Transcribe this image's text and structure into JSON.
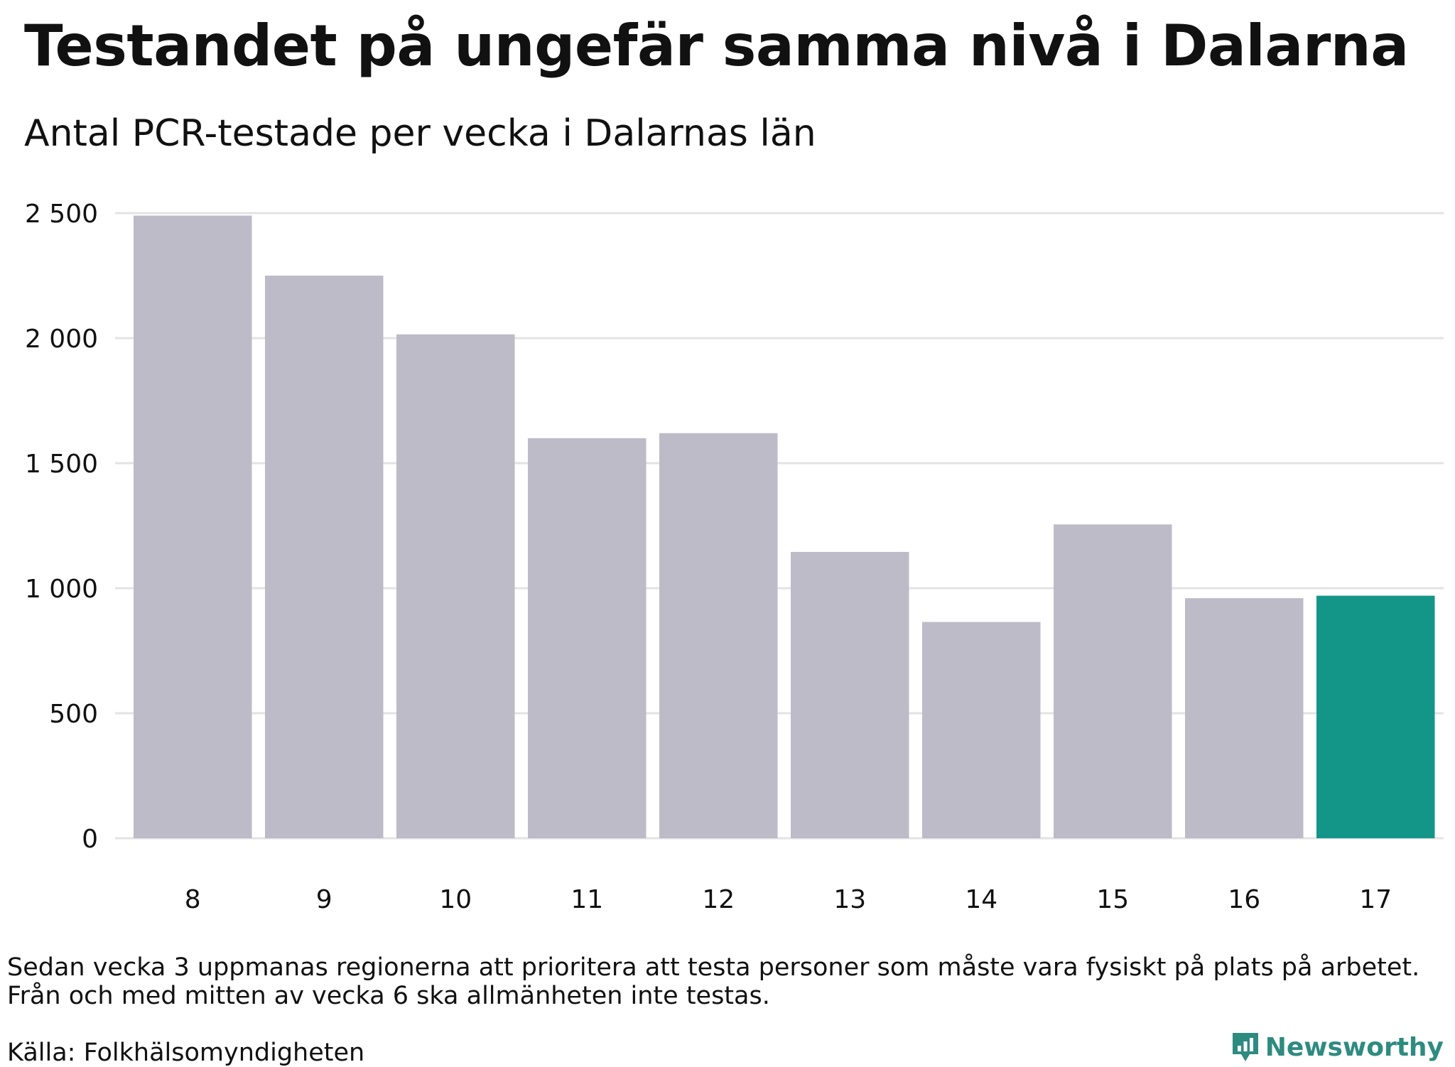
{
  "title": "Testandet på ungefär samma nivå i Dalarna",
  "subtitle": "Antal PCR-testade per vecka i Dalarnas län",
  "note_lines": [
    "Sedan vecka 3 uppmanas regionerna att prioritera att testa personer som måste vara fysiskt på plats på arbetet.",
    "Från och med mitten av vecka 6 ska allmänheten inte testas."
  ],
  "source": "Källa: Folkhälsomyndigheten",
  "brand": {
    "name": "Newsworthy",
    "icon": "newsworthy-logo-icon",
    "color": "#2e8b80"
  },
  "colors": {
    "bar": "#bdbbc8",
    "highlight": "#139688",
    "grid": "#e3e3e3"
  },
  "chart_data": {
    "type": "bar",
    "categories": [
      "8",
      "9",
      "10",
      "11",
      "12",
      "13",
      "14",
      "15",
      "16",
      "17"
    ],
    "values": [
      2490,
      2250,
      2015,
      1600,
      1620,
      1145,
      865,
      1255,
      960,
      970
    ],
    "highlight_index": 9,
    "ylim": [
      0,
      2500
    ],
    "yticks": [
      0,
      500,
      1000,
      1500,
      2000,
      2500
    ],
    "ytick_labels": [
      "0",
      "500",
      "1 000",
      "1 500",
      "2 000",
      "2 500"
    ],
    "grid": true
  }
}
